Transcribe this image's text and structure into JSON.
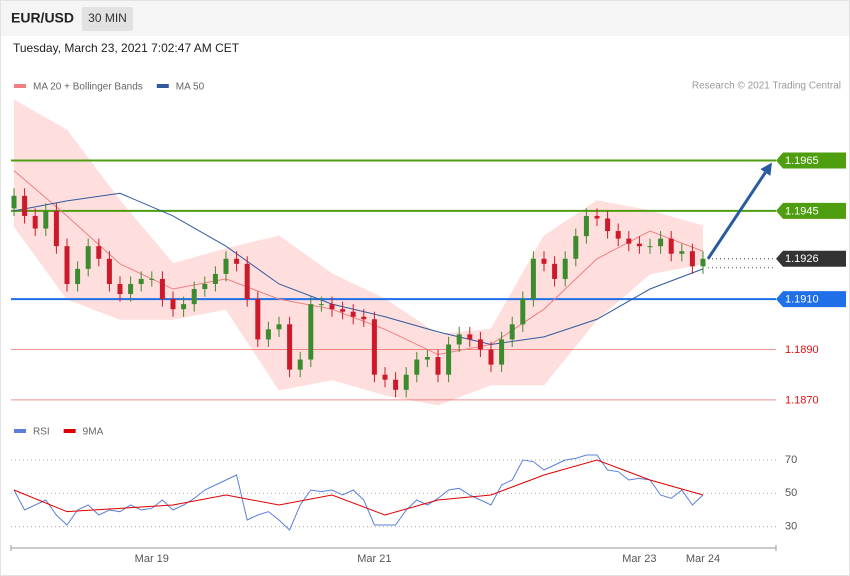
{
  "chart_data": {
    "type": "candlestick",
    "title": "EUR/USD",
    "timeframe": "30 MIN",
    "subtitle": "Tuesday, March 23, 2021 7:02:47 AM CET",
    "source": "Research © 2021 Trading Central",
    "categories": [
      null,
      null,
      null,
      null,
      null,
      null,
      null,
      null,
      null,
      null,
      null,
      null,
      null,
      "Mar 19",
      null,
      null,
      null,
      null,
      null,
      null,
      null,
      null,
      null,
      null,
      null,
      null,
      null,
      null,
      null,
      null,
      null,
      null,
      null,
      null,
      "Mar 21",
      null,
      null,
      null,
      null,
      null,
      null,
      null,
      null,
      null,
      null,
      null,
      null,
      null,
      null,
      null,
      null,
      null,
      null,
      null,
      null,
      null,
      null,
      null,
      null,
      "Mar 23",
      null,
      null,
      null,
      null,
      null,
      "Mar 24"
    ],
    "open": [
      1.1946,
      1.1951,
      1.1943,
      1.1938,
      1.1945,
      1.1931,
      1.1916,
      1.1922,
      1.1931,
      1.1926,
      1.1916,
      1.1912,
      1.1916,
      1.1918,
      1.1918,
      1.191,
      1.1906,
      1.1908,
      1.1914,
      1.1916,
      1.192,
      1.1926,
      1.1924,
      1.191,
      1.1894,
      1.1898,
      1.19,
      1.1882,
      1.1886,
      1.1908,
      1.1908,
      1.1906,
      1.1905,
      1.1903,
      1.1902,
      1.188,
      1.1878,
      1.1874,
      1.188,
      1.1886,
      1.1887,
      1.188,
      1.1892,
      1.1896,
      1.1894,
      1.189,
      1.1884,
      1.1894,
      1.19,
      1.191,
      1.1926,
      1.1924,
      1.1918,
      1.1926,
      1.1935,
      1.1943,
      1.1942,
      1.1937,
      1.1934,
      1.1932,
      1.1931,
      1.1931,
      1.1934,
      1.1928,
      1.1929,
      1.1923
    ],
    "high": [
      1.1954,
      1.1954,
      1.1946,
      1.1948,
      1.1948,
      1.1934,
      1.1925,
      1.1934,
      1.1934,
      1.1929,
      1.1919,
      1.1919,
      1.1921,
      1.1921,
      1.1921,
      1.1913,
      1.1911,
      1.1917,
      1.1919,
      1.1923,
      1.1929,
      1.1929,
      1.1927,
      1.1913,
      1.1901,
      1.1903,
      1.1903,
      1.1889,
      1.1911,
      1.1911,
      1.1911,
      1.1909,
      1.1908,
      1.1906,
      1.1905,
      1.1883,
      1.1881,
      1.1883,
      1.1889,
      1.189,
      1.189,
      1.1895,
      1.1899,
      1.1899,
      1.1897,
      1.1893,
      1.1897,
      1.1903,
      1.1913,
      1.1929,
      1.1929,
      1.1927,
      1.1929,
      1.1938,
      1.1946,
      1.1946,
      1.1945,
      1.194,
      1.1937,
      1.1935,
      1.1934,
      1.1937,
      1.1937,
      1.1932,
      1.1932,
      1.1929
    ],
    "low": [
      1.1943,
      1.194,
      1.1935,
      1.1935,
      1.1928,
      1.1913,
      1.1913,
      1.1919,
      1.1923,
      1.1913,
      1.1909,
      1.1909,
      1.1913,
      1.1915,
      1.1907,
      1.1903,
      1.1903,
      1.1905,
      1.1911,
      1.1913,
      1.1917,
      1.1921,
      1.1907,
      1.1891,
      1.1891,
      1.1895,
      1.1879,
      1.1879,
      1.1883,
      1.1905,
      1.1903,
      1.1902,
      1.19,
      1.1899,
      1.1877,
      1.1875,
      1.1871,
      1.1871,
      1.1877,
      1.1883,
      1.1877,
      1.1877,
      1.1889,
      1.1891,
      1.1887,
      1.1881,
      1.1881,
      1.1891,
      1.1897,
      1.1907,
      1.1921,
      1.1915,
      1.1915,
      1.1923,
      1.1932,
      1.1939,
      1.1934,
      1.1931,
      1.1929,
      1.1928,
      1.1928,
      1.1928,
      1.1925,
      1.1925,
      1.192,
      1.192
    ],
    "close": [
      1.1951,
      1.1943,
      1.1938,
      1.1945,
      1.1931,
      1.1916,
      1.1922,
      1.1931,
      1.1926,
      1.1916,
      1.1912,
      1.1916,
      1.1918,
      1.1918,
      1.191,
      1.1906,
      1.1908,
      1.1914,
      1.1916,
      1.192,
      1.1926,
      1.1924,
      1.191,
      1.1894,
      1.1898,
      1.19,
      1.1882,
      1.1886,
      1.1908,
      1.1908,
      1.1906,
      1.1905,
      1.1903,
      1.1902,
      1.188,
      1.1878,
      1.1874,
      1.188,
      1.1886,
      1.1887,
      1.188,
      1.1892,
      1.1896,
      1.1894,
      1.189,
      1.1884,
      1.1894,
      1.19,
      1.191,
      1.1926,
      1.1924,
      1.1918,
      1.1926,
      1.1935,
      1.1943,
      1.1942,
      1.1937,
      1.1934,
      1.1932,
      1.1931,
      1.1931,
      1.1934,
      1.1928,
      1.1929,
      1.1923,
      1.1926
    ],
    "up_color": "#3d8b2f",
    "down_color": "#cc1a2a",
    "ylim": [
      1.1864,
      1.1991
    ],
    "levels": [
      {
        "value": 1.1965,
        "label": "1.1965",
        "color": "#4f9e0f",
        "style": "box",
        "line": "solid"
      },
      {
        "value": 1.1945,
        "label": "1.1945",
        "color": "#4f9e0f",
        "style": "box",
        "line": "solid"
      },
      {
        "value": 1.1926,
        "label": "1.1926",
        "color": "#333333",
        "style": "box",
        "line": "dotted"
      },
      {
        "value": 1.191,
        "label": "1.1910",
        "color": "#1f6fe8",
        "style": "box",
        "line": "solid"
      },
      {
        "value": 1.189,
        "label": "1.1890",
        "color": "#dd1111",
        "style": "text",
        "line": "solid"
      },
      {
        "value": 1.187,
        "label": "1.1870",
        "color": "#dd1111",
        "style": "text",
        "line": "solid"
      }
    ],
    "overlays": [
      {
        "name": "MA 20 + Bollinger Bands",
        "color": "#f08080",
        "band_color": "#ffdede",
        "x": [
          0,
          5,
          10,
          15,
          20,
          25,
          30,
          35,
          40,
          45,
          50,
          55,
          60,
          65
        ],
        "values": [
          1.1961,
          1.1943,
          1.1924,
          1.1914,
          1.1918,
          1.191,
          1.1906,
          1.1898,
          1.1888,
          1.1892,
          1.1906,
          1.1926,
          1.1937,
          1.1929
        ],
        "upper": [
          1.1989,
          1.1977,
          1.1949,
          1.1924,
          1.193,
          1.1935,
          1.192,
          1.191,
          1.1896,
          1.1898,
          1.1935,
          1.1949,
          1.1945,
          1.1939
        ],
        "lower": [
          1.1939,
          1.191,
          1.1902,
          1.1902,
          1.1906,
          1.1874,
          1.1878,
          1.1872,
          1.1868,
          1.1876,
          1.1876,
          1.1902,
          1.192,
          1.1924
        ]
      },
      {
        "name": "MA 50",
        "color": "#2f5a9e",
        "x": [
          0,
          5,
          10,
          15,
          20,
          25,
          30,
          35,
          40,
          45,
          50,
          55,
          60,
          65
        ],
        "values": [
          1.1945,
          1.1949,
          1.1952,
          1.1943,
          1.1931,
          1.1916,
          1.1908,
          1.1903,
          1.1897,
          1.1892,
          1.1895,
          1.1902,
          1.1914,
          1.1922
        ]
      }
    ],
    "rsi": {
      "ylim": [
        19,
        79
      ],
      "yticks": [
        30,
        50,
        70
      ],
      "series": [
        {
          "name": "RSI",
          "color": "#5b7fdb",
          "values": [
            52,
            40,
            43,
            46,
            37,
            31,
            40,
            43,
            37,
            40,
            39,
            43,
            40,
            41,
            46,
            40,
            43,
            47,
            52,
            55,
            58,
            61,
            34,
            37,
            39,
            34,
            28,
            43,
            52,
            51,
            52,
            49,
            52,
            46,
            31,
            31,
            31,
            40,
            46,
            43,
            47,
            52,
            53,
            49,
            46,
            43,
            55,
            58,
            70,
            69,
            64,
            67,
            70,
            71,
            73,
            73,
            64,
            63,
            58,
            59,
            58,
            49,
            47,
            52,
            43,
            49
          ]
        },
        {
          "name": "9MA",
          "color": "#e00000",
          "x": [
            0,
            5,
            10,
            15,
            20,
            25,
            30,
            35,
            40,
            45,
            50,
            55,
            60,
            65
          ],
          "values": [
            52,
            39,
            41,
            43,
            49,
            43,
            49,
            37,
            46,
            49,
            61,
            70,
            58,
            49
          ]
        }
      ]
    }
  }
}
